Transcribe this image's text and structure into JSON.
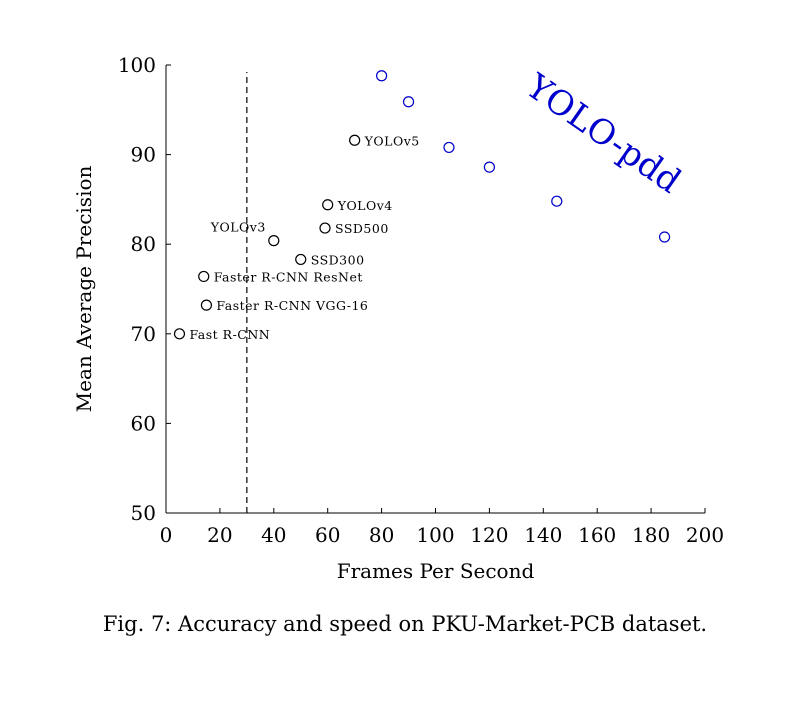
{
  "chart_data": {
    "type": "scatter",
    "xlabel": "Frames Per Second",
    "ylabel": "Mean Average Precision",
    "xlim": [
      0,
      200
    ],
    "ylim": [
      50,
      100
    ],
    "xticks": [
      0,
      20,
      40,
      60,
      80,
      100,
      120,
      140,
      160,
      180,
      200
    ],
    "yticks": [
      50,
      60,
      70,
      80,
      90,
      100
    ],
    "reference_line": {
      "axis": "x",
      "value": 30,
      "style": "dashed"
    },
    "grid": false,
    "series": [
      {
        "name": "",
        "color": "#000000",
        "marker": "open-circle",
        "points": [
          {
            "label": "Fast R-CNN",
            "x": 5,
            "y": 70.0
          },
          {
            "label": "Faster R-CNN VGG-16",
            "x": 15,
            "y": 73.2
          },
          {
            "label": "Faster R-CNN ResNet",
            "x": 14,
            "y": 76.4
          },
          {
            "label": "YOLOv3",
            "x": 40,
            "y": 80.4
          },
          {
            "label": "SSD300",
            "x": 50,
            "y": 78.3
          },
          {
            "label": "SSD500",
            "x": 59,
            "y": 81.8
          },
          {
            "label": "YOLOv4",
            "x": 60,
            "y": 84.4
          },
          {
            "label": "YOLOv5",
            "x": 70,
            "y": 91.6
          }
        ]
      },
      {
        "name": "YOLO-pdd",
        "color": "#0000cc",
        "marker": "open-circle",
        "points": [
          {
            "x": 80,
            "y": 98.8
          },
          {
            "x": 90,
            "y": 95.9
          },
          {
            "x": 105,
            "y": 90.8
          },
          {
            "x": 120,
            "y": 88.6
          },
          {
            "x": 145,
            "y": 84.8
          },
          {
            "x": 185,
            "y": 80.8
          }
        ]
      }
    ]
  },
  "caption": "Fig. 7: Accuracy and speed on PKU-Market-PCB dataset."
}
